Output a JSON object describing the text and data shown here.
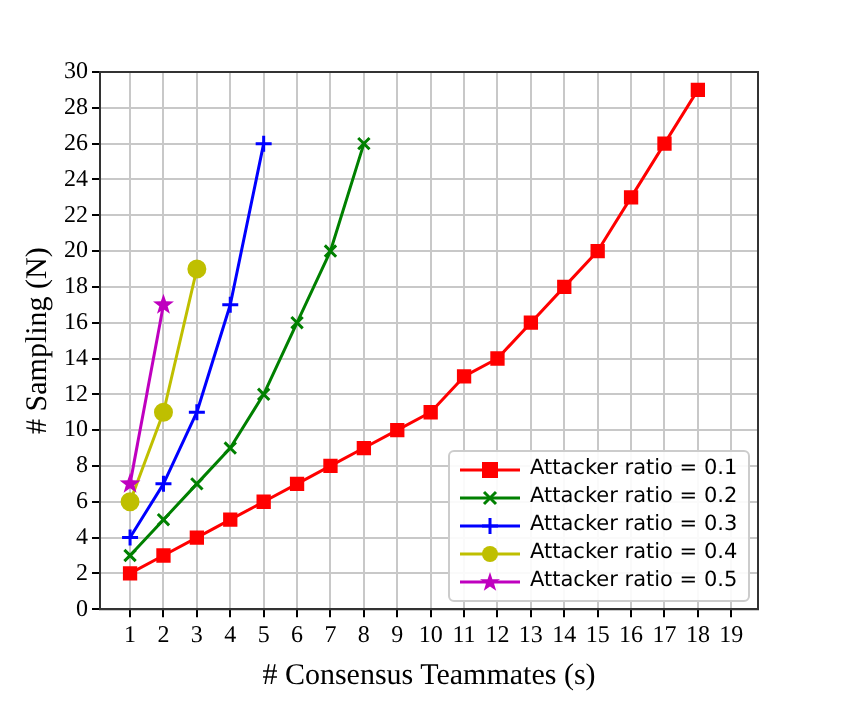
{
  "chart_data": {
    "type": "line",
    "xlabel": "# Consensus Teammates (s)",
    "ylabel": "# Sampling (N)",
    "xlim": [
      0.1,
      19.8
    ],
    "xticks": [
      1,
      2,
      3,
      4,
      5,
      6,
      7,
      8,
      9,
      10,
      11,
      12,
      13,
      14,
      15,
      16,
      17,
      18,
      19
    ],
    "ylim": [
      0,
      30
    ],
    "yticks": [
      0,
      2,
      4,
      6,
      8,
      10,
      12,
      14,
      16,
      18,
      20,
      22,
      24,
      26,
      28,
      30
    ],
    "grid": true,
    "legend": "bottom right",
    "series": [
      {
        "name": "Attacker ratio = 0.1",
        "color": "#ff0000",
        "marker": "square",
        "x": [
          1,
          2,
          3,
          4,
          5,
          6,
          7,
          8,
          9,
          10,
          11,
          12,
          13,
          14,
          15,
          16,
          17,
          18
        ],
        "values": [
          2,
          3,
          4,
          5,
          6,
          7,
          8,
          9,
          10,
          11,
          13,
          14,
          16,
          18,
          20,
          23,
          26,
          29
        ]
      },
      {
        "name": "Attacker ratio = 0.2",
        "color": "#008000",
        "marker": "cross",
        "x": [
          1,
          2,
          3,
          4,
          5,
          6,
          7,
          8
        ],
        "values": [
          3,
          5,
          7,
          9,
          12,
          16,
          20,
          26
        ]
      },
      {
        "name": "Attacker ratio = 0.3",
        "color": "#0000ff",
        "marker": "plus",
        "x": [
          1,
          2,
          3,
          4,
          5
        ],
        "values": [
          4,
          7,
          11,
          17,
          26
        ]
      },
      {
        "name": "Attacker ratio = 0.4",
        "color": "#bfbf00",
        "marker": "circle",
        "x": [
          1,
          2,
          3
        ],
        "values": [
          6,
          11,
          19
        ]
      },
      {
        "name": "Attacker ratio = 0.5",
        "color": "#bf00bf",
        "marker": "star",
        "x": [
          1,
          2
        ],
        "values": [
          7,
          17
        ]
      }
    ]
  }
}
